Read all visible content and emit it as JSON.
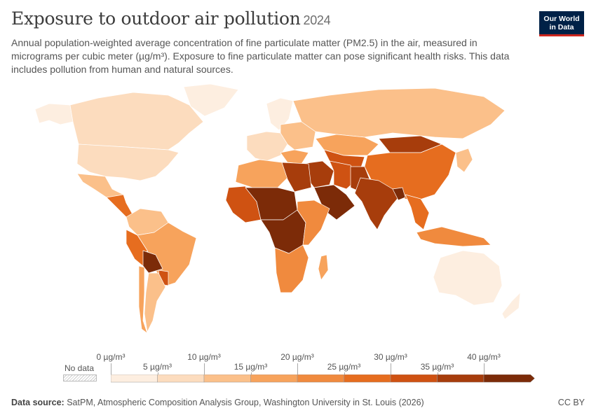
{
  "header": {
    "title": "Exposure to outdoor air pollution",
    "year": "2024",
    "subtitle": "Annual population-weighted average concentration of fine particulate matter (PM2.5) in the air, measured in micrograms per cubic meter (µg/m³). Exposure to fine particulate matter can pose significant health risks. This data includes pollution from human and natural sources."
  },
  "logo": {
    "line1": "Our World",
    "line2": "in Data"
  },
  "legend": {
    "no_data_label": "No data",
    "bins": [
      {
        "from": 0,
        "to": 5,
        "color": "#fdeee0"
      },
      {
        "from": 5,
        "to": 10,
        "color": "#fcdcbe"
      },
      {
        "from": 10,
        "to": 15,
        "color": "#fbc08a"
      },
      {
        "from": 15,
        "to": 20,
        "color": "#f7a35c"
      },
      {
        "from": 20,
        "to": 25,
        "color": "#f08a3e"
      },
      {
        "from": 25,
        "to": 30,
        "color": "#e66d1f"
      },
      {
        "from": 30,
        "to": 35,
        "color": "#cf5212"
      },
      {
        "from": 35,
        "to": 40,
        "color": "#a73d0c"
      },
      {
        "from": 40,
        "to": 45,
        "color": "#7c2b08"
      }
    ],
    "ticks_upper": [
      "0 µg/m³",
      "10 µg/m³",
      "20 µg/m³",
      "30 µg/m³",
      "40 µg/m³"
    ],
    "ticks_lower": [
      "5 µg/m³",
      "15 µg/m³",
      "25 µg/m³",
      "35 µg/m³"
    ]
  },
  "footer": {
    "source_label": "Data source:",
    "source_text": "SatPM, Atmospheric Composition Analysis Group, Washington University in St. Louis (2026)",
    "license": "CC BY"
  },
  "map_data": {
    "regions": [
      {
        "name": "Canada",
        "bin": 1
      },
      {
        "name": "United States",
        "bin": 1
      },
      {
        "name": "Alaska",
        "bin": 0
      },
      {
        "name": "Greenland",
        "bin": 0
      },
      {
        "name": "Mexico",
        "bin": 2
      },
      {
        "name": "Central America",
        "bin": 5
      },
      {
        "name": "Colombia/Venezuela",
        "bin": 2
      },
      {
        "name": "Brazil",
        "bin": 3
      },
      {
        "name": "Peru",
        "bin": 5
      },
      {
        "name": "Bolivia",
        "bin": 8
      },
      {
        "name": "Paraguay",
        "bin": 6
      },
      {
        "name": "Argentina",
        "bin": 2
      },
      {
        "name": "Chile",
        "bin": 3
      },
      {
        "name": "Europe West",
        "bin": 1
      },
      {
        "name": "Scandinavia",
        "bin": 0
      },
      {
        "name": "Eastern Europe",
        "bin": 2
      },
      {
        "name": "Balkans",
        "bin": 3
      },
      {
        "name": "Russia",
        "bin": 2
      },
      {
        "name": "Kazakhstan",
        "bin": 3
      },
      {
        "name": "Central Asia",
        "bin": 6
      },
      {
        "name": "Middle East",
        "bin": 7
      },
      {
        "name": "Arabian Peninsula",
        "bin": 8
      },
      {
        "name": "Iran",
        "bin": 6
      },
      {
        "name": "Pakistan",
        "bin": 7
      },
      {
        "name": "India",
        "bin": 7
      },
      {
        "name": "Bangladesh",
        "bin": 8
      },
      {
        "name": "China",
        "bin": 5
      },
      {
        "name": "Mongolia",
        "bin": 7
      },
      {
        "name": "Korea/Japan",
        "bin": 2
      },
      {
        "name": "Southeast Asia",
        "bin": 5
      },
      {
        "name": "Indonesia",
        "bin": 4
      },
      {
        "name": "Australia",
        "bin": 0
      },
      {
        "name": "New Zealand",
        "bin": 0
      },
      {
        "name": "North Africa",
        "bin": 3
      },
      {
        "name": "Sahel",
        "bin": 8
      },
      {
        "name": "West Africa",
        "bin": 6
      },
      {
        "name": "Central Africa",
        "bin": 8
      },
      {
        "name": "Egypt/Libya",
        "bin": 7
      },
      {
        "name": "East Africa",
        "bin": 4
      },
      {
        "name": "Southern Africa",
        "bin": 4
      },
      {
        "name": "Madagascar",
        "bin": 3
      }
    ]
  }
}
